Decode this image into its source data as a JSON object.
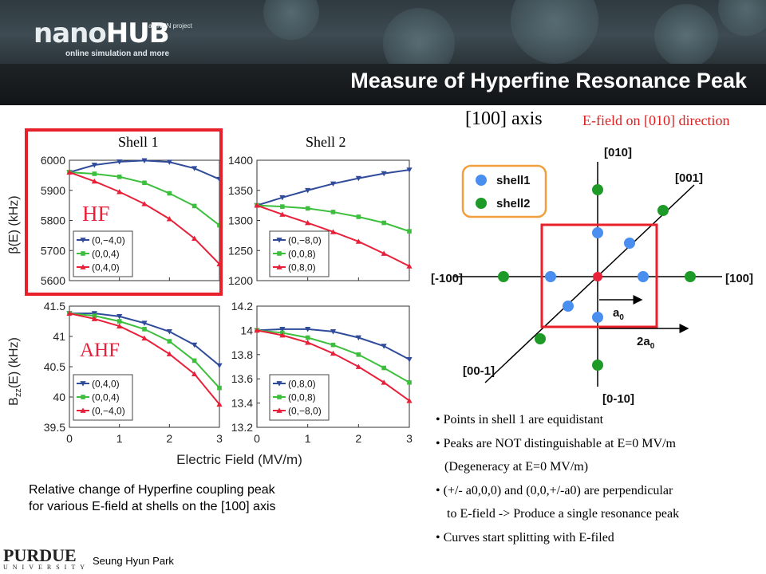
{
  "header": {
    "logo_main_a": "nano",
    "logo_main_b": "HUB",
    "logo_tagline": "online simulation and more",
    "logo_ncn": "an NCN project"
  },
  "slide": {
    "title": "Measure of Hyperfine Resonance Peak",
    "axis_title": "[100] axis",
    "efield_note": "E-field on [010] direction",
    "shell1_label": "Shell 1",
    "shell2_label": "Shell 2",
    "hf_label": "HF",
    "ahf_label": "AHF",
    "caption_line1": "Relative change of Hyperfine coupling peak",
    "caption_line2": "for various E-field at shells on the [100] axis",
    "bullets": [
      "• Points in shell 1 are equidistant",
      "• Peaks are NOT distinguishable at E=0 MV/m",
      "(Degeneracy at E=0 MV/m)",
      "• (+/- a0,0,0) and (0,0,+/-a0) are perpendicular",
      "to E-field -> Produce a single resonance peak",
      "• Curves start splitting with E-filed"
    ],
    "university": "PURDUE",
    "university_sub": "UNIVERSITY",
    "presenter": "Seung Hyun Park"
  },
  "colors": {
    "blue": "#2f4b9a",
    "green": "#3cbf3c",
    "red": "#e8203a",
    "highlight_red": "#e8202a",
    "shell1_dot": "#4a8ef0",
    "shell2_dot": "#1e9a28",
    "legend_orange": "#f0a040"
  },
  "chart_data": [
    {
      "type": "line",
      "panel": "HF shell 1",
      "x": [
        0,
        0.5,
        1,
        1.5,
        2,
        2.5,
        3
      ],
      "xlim": [
        0,
        3
      ],
      "ylim": [
        5600,
        6000
      ],
      "yticks": [
        5600,
        5700,
        5800,
        5900,
        6000
      ],
      "ylabel": "β(E) (kHz)",
      "series": [
        {
          "name": "(0,−4,0)",
          "color": "blue",
          "values": [
            5960,
            5984,
            5995,
            5999,
            5994,
            5973,
            5937
          ]
        },
        {
          "name": "(0,0,4)",
          "color": "green",
          "values": [
            5960,
            5955,
            5945,
            5925,
            5890,
            5848,
            5784
          ]
        },
        {
          "name": "(0,4,0)",
          "color": "red",
          "values": [
            5960,
            5930,
            5895,
            5855,
            5805,
            5740,
            5655
          ]
        }
      ]
    },
    {
      "type": "line",
      "panel": "HF shell 2",
      "x": [
        0,
        0.5,
        1,
        1.5,
        2,
        2.5,
        3
      ],
      "xlim": [
        0,
        3
      ],
      "ylim": [
        1200,
        1400
      ],
      "yticks": [
        1200,
        1250,
        1300,
        1350,
        1400
      ],
      "series": [
        {
          "name": "(0,−8,0)",
          "color": "blue",
          "values": [
            1325,
            1338,
            1350,
            1361,
            1370,
            1378,
            1384
          ]
        },
        {
          "name": "(0,0,8)",
          "color": "green",
          "values": [
            1325,
            1323,
            1320,
            1314,
            1306,
            1296,
            1282
          ]
        },
        {
          "name": "(0,8,0)",
          "color": "red",
          "values": [
            1325,
            1310,
            1296,
            1281,
            1265,
            1245,
            1224
          ]
        }
      ]
    },
    {
      "type": "line",
      "panel": "AHF shell 1",
      "x": [
        0,
        0.5,
        1,
        1.5,
        2,
        2.5,
        3
      ],
      "xlim": [
        0,
        3
      ],
      "ylim": [
        39.5,
        41.5
      ],
      "yticks": [
        39.5,
        40,
        40.5,
        41,
        41.5
      ],
      "ylabel": "B_zz(E) (kHz)",
      "series": [
        {
          "name": "(0,4,0)",
          "color": "blue",
          "values": [
            41.38,
            41.38,
            41.33,
            41.22,
            41.08,
            40.86,
            40.52
          ]
        },
        {
          "name": "(0,0,4)",
          "color": "green",
          "values": [
            41.38,
            41.34,
            41.25,
            41.12,
            40.92,
            40.6,
            40.15
          ]
        },
        {
          "name": "(0,−4,0)",
          "color": "red",
          "values": [
            41.38,
            41.29,
            41.17,
            40.97,
            40.71,
            40.38,
            39.88
          ]
        }
      ]
    },
    {
      "type": "line",
      "panel": "AHF shell 2",
      "x": [
        0,
        0.5,
        1,
        1.5,
        2,
        2.5,
        3
      ],
      "xlim": [
        0,
        3
      ],
      "ylim": [
        13.2,
        14.2
      ],
      "yticks": [
        13.2,
        13.4,
        13.6,
        13.8,
        14,
        14.2
      ],
      "xlabel": "Electric Field (MV/m)",
      "xticks": [
        0,
        1,
        2,
        3
      ],
      "series": [
        {
          "name": "(0,8,0)",
          "color": "blue",
          "values": [
            14.0,
            14.01,
            14.01,
            13.99,
            13.94,
            13.87,
            13.76
          ]
        },
        {
          "name": "(0,0,8)",
          "color": "green",
          "values": [
            14.0,
            13.98,
            13.94,
            13.88,
            13.8,
            13.69,
            13.57
          ]
        },
        {
          "name": "(0,−8,0)",
          "color": "red",
          "values": [
            14.0,
            13.96,
            13.9,
            13.81,
            13.7,
            13.57,
            13.42
          ]
        }
      ]
    }
  ],
  "diagram": {
    "axis_labels": {
      "pos_y": "[010]",
      "neg_y": "[0-10]",
      "pos_x": "[100]",
      "neg_x": "[-100]",
      "pos_z": "[001]",
      "neg_z": "[00-1]"
    },
    "legend": [
      "shell1",
      "shell2"
    ],
    "a0_label": "a",
    "a0_sub": "0",
    "two_a0_label": "2a",
    "two_a0_sub": "0"
  }
}
